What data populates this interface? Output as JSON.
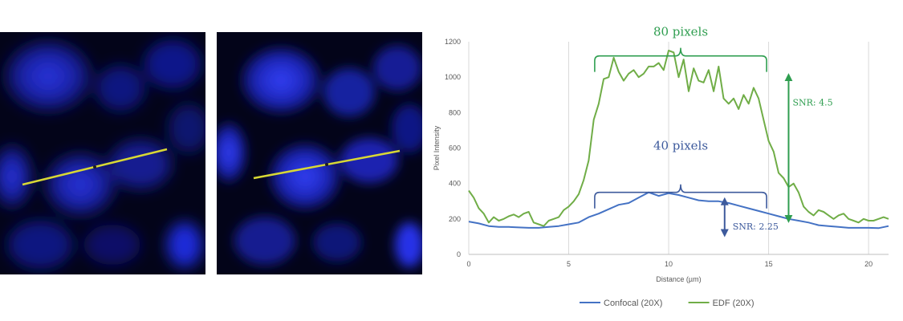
{
  "images": [
    {
      "name": "micrograph-confocal",
      "line": [
        [
          28,
          190
        ],
        [
          208,
          146
        ]
      ]
    },
    {
      "name": "micrograph-edf",
      "line": [
        [
          46,
          182
        ],
        [
          228,
          148
        ]
      ]
    }
  ],
  "chart_data": {
    "type": "line",
    "xlabel": "Distance (µm)",
    "ylabel": "Pixel Intensity",
    "xlim": [
      0,
      21
    ],
    "ylim": [
      0,
      1200
    ],
    "xticks": [
      0,
      5,
      10,
      15,
      20
    ],
    "yticks": [
      0,
      200,
      400,
      600,
      800,
      1000,
      1200
    ],
    "grid": "vertical",
    "legend_position": "bottom",
    "series": [
      {
        "name": "Confocal (20X)",
        "color": "#4472C4",
        "x": [
          0,
          0.5,
          1,
          1.5,
          2,
          2.5,
          3,
          3.5,
          4,
          4.5,
          5,
          5.5,
          6,
          6.5,
          7,
          7.5,
          8,
          8.5,
          9,
          9.5,
          10,
          10.5,
          11,
          11.5,
          12,
          12.5,
          13,
          13.5,
          14,
          14.5,
          15,
          15.5,
          16,
          16.5,
          17,
          17.5,
          18,
          18.5,
          19,
          19.5,
          20,
          20.5,
          21
        ],
        "y": [
          185,
          175,
          160,
          155,
          155,
          152,
          150,
          150,
          155,
          160,
          170,
          180,
          210,
          230,
          255,
          280,
          290,
          320,
          350,
          330,
          345,
          335,
          320,
          305,
          300,
          300,
          290,
          275,
          260,
          245,
          230,
          215,
          200,
          190,
          180,
          165,
          160,
          155,
          150,
          150,
          150,
          148,
          160
        ]
      },
      {
        "name": "EDF (20X)",
        "color": "#70AD47",
        "x": [
          0,
          0.25,
          0.5,
          0.75,
          1,
          1.25,
          1.5,
          1.75,
          2,
          2.25,
          2.5,
          2.75,
          3,
          3.25,
          3.5,
          3.75,
          4,
          4.25,
          4.5,
          4.75,
          5,
          5.25,
          5.5,
          5.75,
          6,
          6.25,
          6.5,
          6.75,
          7,
          7.25,
          7.5,
          7.75,
          8,
          8.25,
          8.5,
          8.75,
          9,
          9.25,
          9.5,
          9.75,
          10,
          10.25,
          10.5,
          10.75,
          11,
          11.25,
          11.5,
          11.75,
          12,
          12.25,
          12.5,
          12.75,
          13,
          13.25,
          13.5,
          13.75,
          14,
          14.25,
          14.5,
          14.75,
          15,
          15.25,
          15.5,
          15.75,
          16,
          16.25,
          16.5,
          16.75,
          17,
          17.25,
          17.5,
          17.75,
          18,
          18.25,
          18.5,
          18.75,
          19,
          19.25,
          19.5,
          19.75,
          20,
          20.25,
          20.5,
          20.75,
          21
        ],
        "y": [
          360,
          320,
          260,
          230,
          180,
          210,
          190,
          200,
          215,
          225,
          210,
          230,
          240,
          180,
          170,
          160,
          190,
          200,
          210,
          250,
          270,
          300,
          340,
          420,
          530,
          760,
          850,
          990,
          1000,
          1110,
          1030,
          980,
          1020,
          1040,
          1000,
          1020,
          1060,
          1060,
          1080,
          1040,
          1150,
          1140,
          1000,
          1100,
          920,
          1050,
          980,
          970,
          1040,
          920,
          1060,
          880,
          850,
          880,
          820,
          900,
          850,
          940,
          880,
          760,
          640,
          580,
          460,
          430,
          380,
          400,
          350,
          270,
          240,
          220,
          250,
          240,
          220,
          200,
          220,
          230,
          200,
          190,
          180,
          200,
          190,
          190,
          200,
          210,
          200
        ]
      }
    ],
    "annotations": [
      {
        "name": "edf-width",
        "text": "80 pixels",
        "color": "#2F9E50",
        "kind": "brace",
        "x1": 6.3,
        "x2": 14.9,
        "y": 1120,
        "label_y": 1235
      },
      {
        "name": "confocal-width",
        "text": "40 pixels",
        "color": "#3D5A9C",
        "kind": "brace",
        "x1": 6.3,
        "x2": 14.9,
        "y": 350,
        "label_y": 590
      },
      {
        "name": "edf-snr",
        "text": "SNR: 4.5",
        "color": "#2F9E50",
        "kind": "arrow",
        "x": 16,
        "y1": 200,
        "y2": 1000,
        "label_x": 16.2,
        "label_y": 840
      },
      {
        "name": "confocal-snr",
        "text": "SNR: 2.25",
        "color": "#3D5A9C",
        "kind": "arrow",
        "x": 12.8,
        "y1": 120,
        "y2": 300,
        "label_x": 13.2,
        "label_y": 140
      }
    ]
  }
}
